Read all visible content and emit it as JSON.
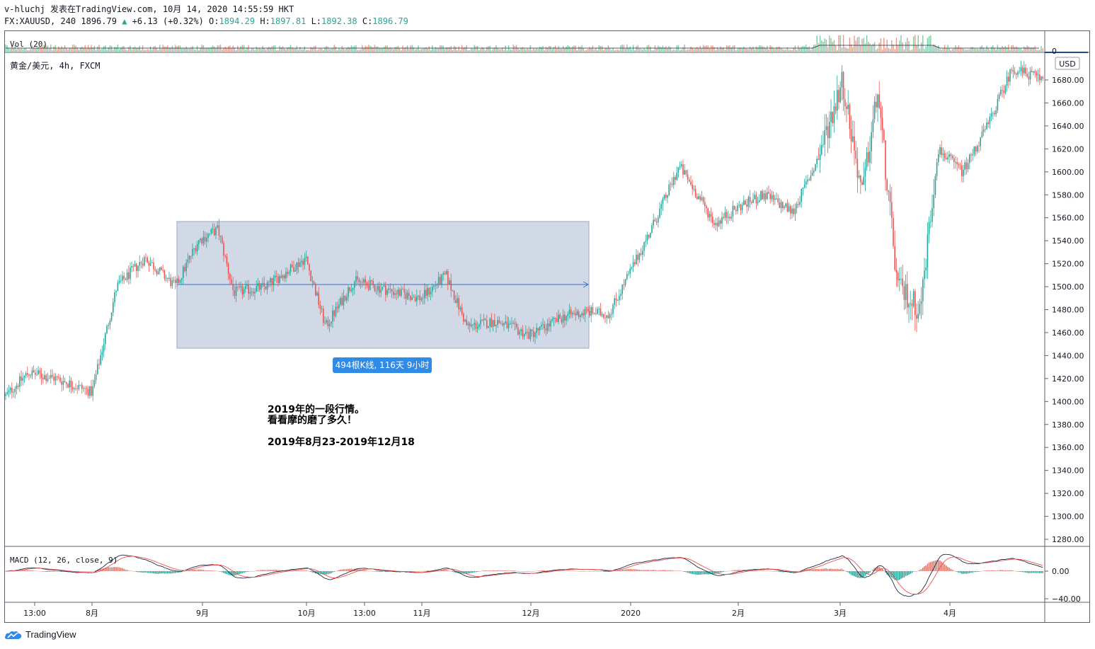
{
  "header": {
    "publish_line": "v-hluchj 发表在TradingView.com, 10月 14, 2020 14:55:59 HKT",
    "symbol_info": "FX:XAUUSD, 240 1896.79",
    "change": "+6.13 (+0.32%)",
    "o_label": "O:",
    "o_value": "1894.29",
    "h_label": "H:",
    "h_value": "1897.81",
    "l_label": "L:",
    "l_value": "1892.38",
    "c_label": "C:",
    "c_value": "1896.79"
  },
  "volume_pane": {
    "label": "Vol (20)",
    "zero_label": "0"
  },
  "main_pane": {
    "legend": "黄金/美元, 4h, FXCM",
    "currency_button": "USD",
    "price_labels": [
      "1680.00",
      "1660.00",
      "1640.00",
      "1620.00",
      "1600.00",
      "1580.00",
      "1560.00",
      "1540.00",
      "1520.00",
      "1500.00",
      "1480.00",
      "1460.00",
      "1440.00",
      "1420.00",
      "1400.00",
      "1380.00",
      "1360.00",
      "1340.00",
      "1320.00",
      "1300.00",
      "1280.00"
    ],
    "range_box_label": "494根K线, 116天 9小时",
    "annotation_line1": "2019年的一段行情。",
    "annotation_line2": "看看摩的磨了多久！",
    "annotation_line3": "2019年8月23-2019年12月18"
  },
  "macd_pane": {
    "label": "MACD (12, 26, close, 9)",
    "axis_labels": [
      "0.00",
      "−40.00"
    ]
  },
  "time_axis": {
    "labels": [
      "13:00",
      "8月",
      "9月",
      "10月",
      "13:00",
      "11月",
      "12月",
      "2020",
      "2月",
      "3月",
      "4月"
    ]
  },
  "footer": {
    "logo_text": "TradingView"
  },
  "colors": {
    "up": "#26a69a",
    "down": "#ef5350",
    "range_fill": "#d1d9e6",
    "range_line": "#3a6fc4",
    "label_bg": "#2f8be6",
    "last_price_line": "#1f4a8a"
  },
  "chart_data": {
    "type": "candlestick",
    "price_axis_range": [
      1270,
      1700
    ],
    "path_anchors": [
      [
        "start",
        1405
      ],
      [
        "mid-Jul",
        1425
      ],
      [
        "late-Jul",
        1420
      ],
      [
        "8月",
        1408
      ],
      [
        "early-Aug",
        1500
      ],
      [
        "mid-Aug",
        1525
      ],
      [
        "8月23",
        1500
      ],
      [
        "late-Aug",
        1540
      ],
      [
        "9月",
        1550
      ],
      [
        "early-Sep",
        1495
      ],
      [
        "mid-Sep",
        1500
      ],
      [
        "late-Sep",
        1525
      ],
      [
        "10月",
        1465
      ],
      [
        "early-Oct",
        1505
      ],
      [
        "mid-Oct",
        1495
      ],
      [
        "late-Oct",
        1490
      ],
      [
        "11月",
        1510
      ],
      [
        "early-Nov",
        1465
      ],
      [
        "mid-Nov",
        1470
      ],
      [
        "late-Nov",
        1458
      ],
      [
        "12月",
        1465
      ],
      [
        "early-Dec",
        1475
      ],
      [
        "mid-Dec",
        1478
      ],
      [
        "12月18",
        1476
      ],
      [
        "late-Dec",
        1515
      ],
      [
        "2020",
        1550
      ],
      [
        "early-Jan",
        1605
      ],
      [
        "mid-Jan",
        1555
      ],
      [
        "late-Jan",
        1570
      ],
      [
        "2月",
        1580
      ],
      [
        "early-Feb",
        1565
      ],
      [
        "mid-Feb",
        1610
      ],
      [
        "late-Feb",
        1680
      ],
      [
        "early-Mar",
        1580
      ],
      [
        "3月",
        1670
      ],
      [
        "mid-Mar",
        1500
      ],
      [
        "late-Mar",
        1480
      ],
      [
        "end-Mar",
        1620
      ],
      [
        "4月",
        1600
      ],
      [
        "early-Apr",
        1640
      ],
      [
        "mid-Apr",
        1690
      ],
      [
        "late-Apr",
        1680
      ],
      [
        "end",
        1705
      ]
    ]
  }
}
